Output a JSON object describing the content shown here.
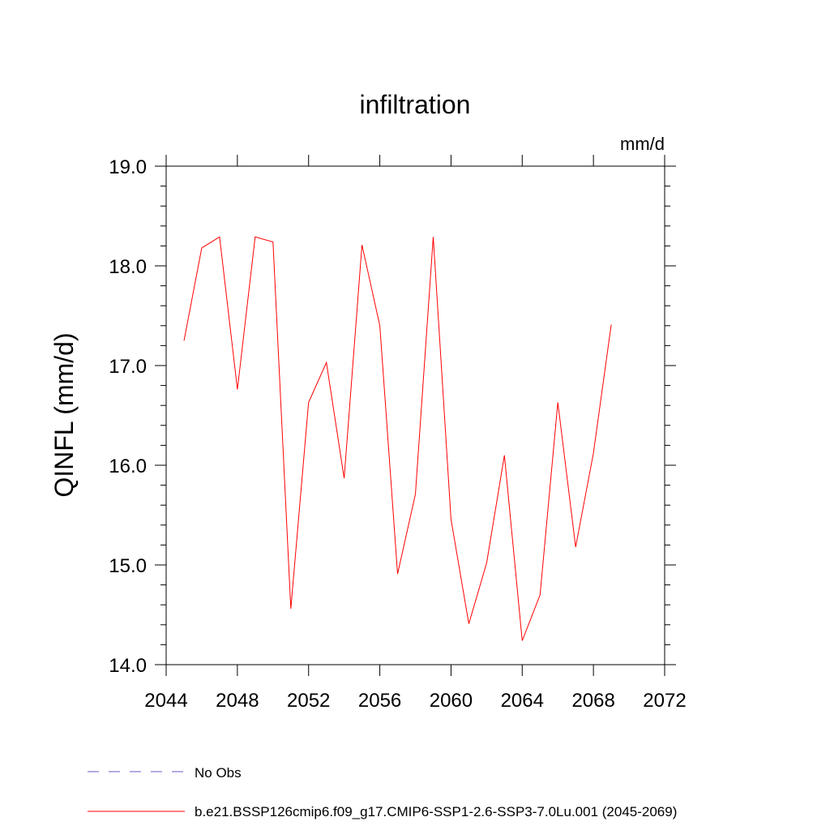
{
  "chart_data": {
    "type": "line",
    "title": "infiltration",
    "units": "mm/d",
    "ylabel": "QINFL  (mm/d)",
    "xlabel": "",
    "xlim": [
      2044,
      2072
    ],
    "ylim": [
      14.0,
      19.0
    ],
    "xticks": [
      2044,
      2048,
      2052,
      2056,
      2060,
      2064,
      2068,
      2072
    ],
    "xtick_labels": [
      "2044",
      "2048",
      "2052",
      "2056",
      "2060",
      "2064",
      "2068",
      "2072"
    ],
    "yticks": [
      14.0,
      15.0,
      16.0,
      17.0,
      18.0,
      19.0
    ],
    "ytick_labels": [
      "14.0",
      "15.0",
      "16.0",
      "17.0",
      "18.0",
      "19.0"
    ],
    "grid": false,
    "legend_position": "bottom",
    "series": [
      {
        "name": "b.e21.BSSP126cmip6.f09_g17.CMIP6-SSP1-2.6-SSP3-7.0Lu.001 (2045-2069)",
        "color": "#ff0000",
        "dash": "solid",
        "x": [
          2045,
          2046,
          2047,
          2048,
          2049,
          2050,
          2051,
          2052,
          2053,
          2054,
          2055,
          2056,
          2057,
          2058,
          2059,
          2060,
          2061,
          2062,
          2063,
          2064,
          2065,
          2066,
          2067,
          2068,
          2069
        ],
        "y": [
          17.25,
          18.18,
          18.29,
          16.76,
          18.29,
          18.24,
          14.56,
          16.63,
          17.03,
          15.87,
          18.21,
          17.4,
          14.91,
          15.71,
          18.29,
          15.46,
          14.41,
          15.02,
          16.1,
          14.24,
          14.7,
          16.63,
          15.18,
          16.12,
          17.41
        ]
      }
    ],
    "legend": [
      {
        "label": "No Obs",
        "color": "#6a5acd",
        "dash": "dashed"
      },
      {
        "label": "b.e21.BSSP126cmip6.f09_g17.CMIP6-SSP1-2.6-SSP3-7.0Lu.001 (2045-2069)",
        "color": "#ff0000",
        "dash": "solid"
      }
    ]
  }
}
